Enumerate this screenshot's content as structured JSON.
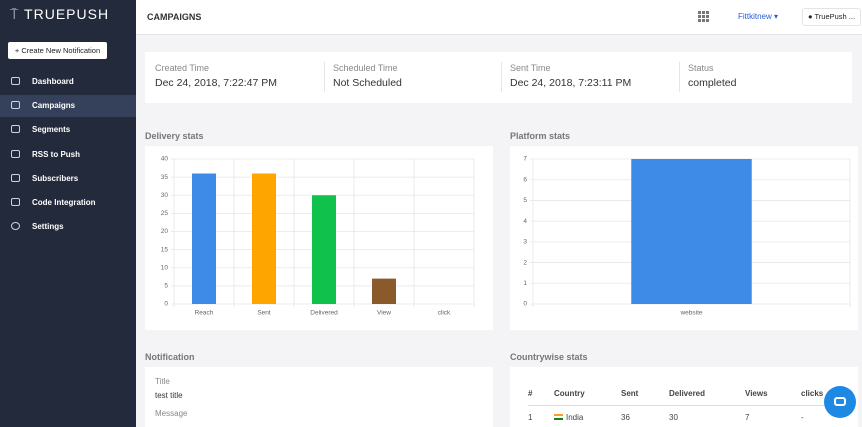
{
  "sidebar": {
    "logo": "TRUEPUSH",
    "button": "+ Create New Notification",
    "menu": [
      "Dashboard",
      "Campaigns",
      "Segments",
      "RSS to Push",
      "Subscribers",
      "Code Integration",
      "Settings"
    ]
  },
  "header": {
    "title": "CAMPAIGNS",
    "account": "Fittkitnew",
    "user": "TruePush ..."
  },
  "summary": [
    {
      "label": "Created Time",
      "value": "Dec 24, 2018, 7:22:47 PM"
    },
    {
      "label": "Scheduled Time",
      "value": "Not Scheduled"
    },
    {
      "label": "Sent Time",
      "value": "Dec 24, 2018, 7:23:11 PM"
    },
    {
      "label": "Status",
      "value": "completed"
    }
  ],
  "chart_data": [
    {
      "type": "bar",
      "title": "Delivery stats",
      "categories": [
        "Reach",
        "Sent",
        "Delivered",
        "View",
        "click"
      ],
      "values": [
        36,
        36,
        30,
        7,
        0
      ],
      "colors": [
        "#3d8be6",
        "#ffa500",
        "#10c24b",
        "#8b5a2b",
        "#e53935"
      ],
      "ylim": [
        0,
        40
      ],
      "yticks": [
        0,
        5,
        10,
        15,
        20,
        25,
        30,
        35,
        40
      ],
      "grid": true
    },
    {
      "type": "bar",
      "title": "Platform stats",
      "categories": [
        "website"
      ],
      "values": [
        7
      ],
      "colors": [
        "#3d8be6"
      ],
      "ylim": [
        0,
        7
      ],
      "yticks": [
        0,
        1,
        2,
        3,
        4,
        5,
        6,
        7
      ],
      "grid": true
    }
  ],
  "notification": {
    "heading": "Notification",
    "title_label": "Title",
    "title": "test title",
    "message_label": "Message"
  },
  "countrywise": {
    "heading": "Countrywise stats",
    "columns": [
      "#",
      "Country",
      "Sent",
      "Delivered",
      "Views",
      "clicks"
    ],
    "rows": [
      [
        1,
        "India",
        36,
        30,
        7,
        "-"
      ]
    ]
  }
}
